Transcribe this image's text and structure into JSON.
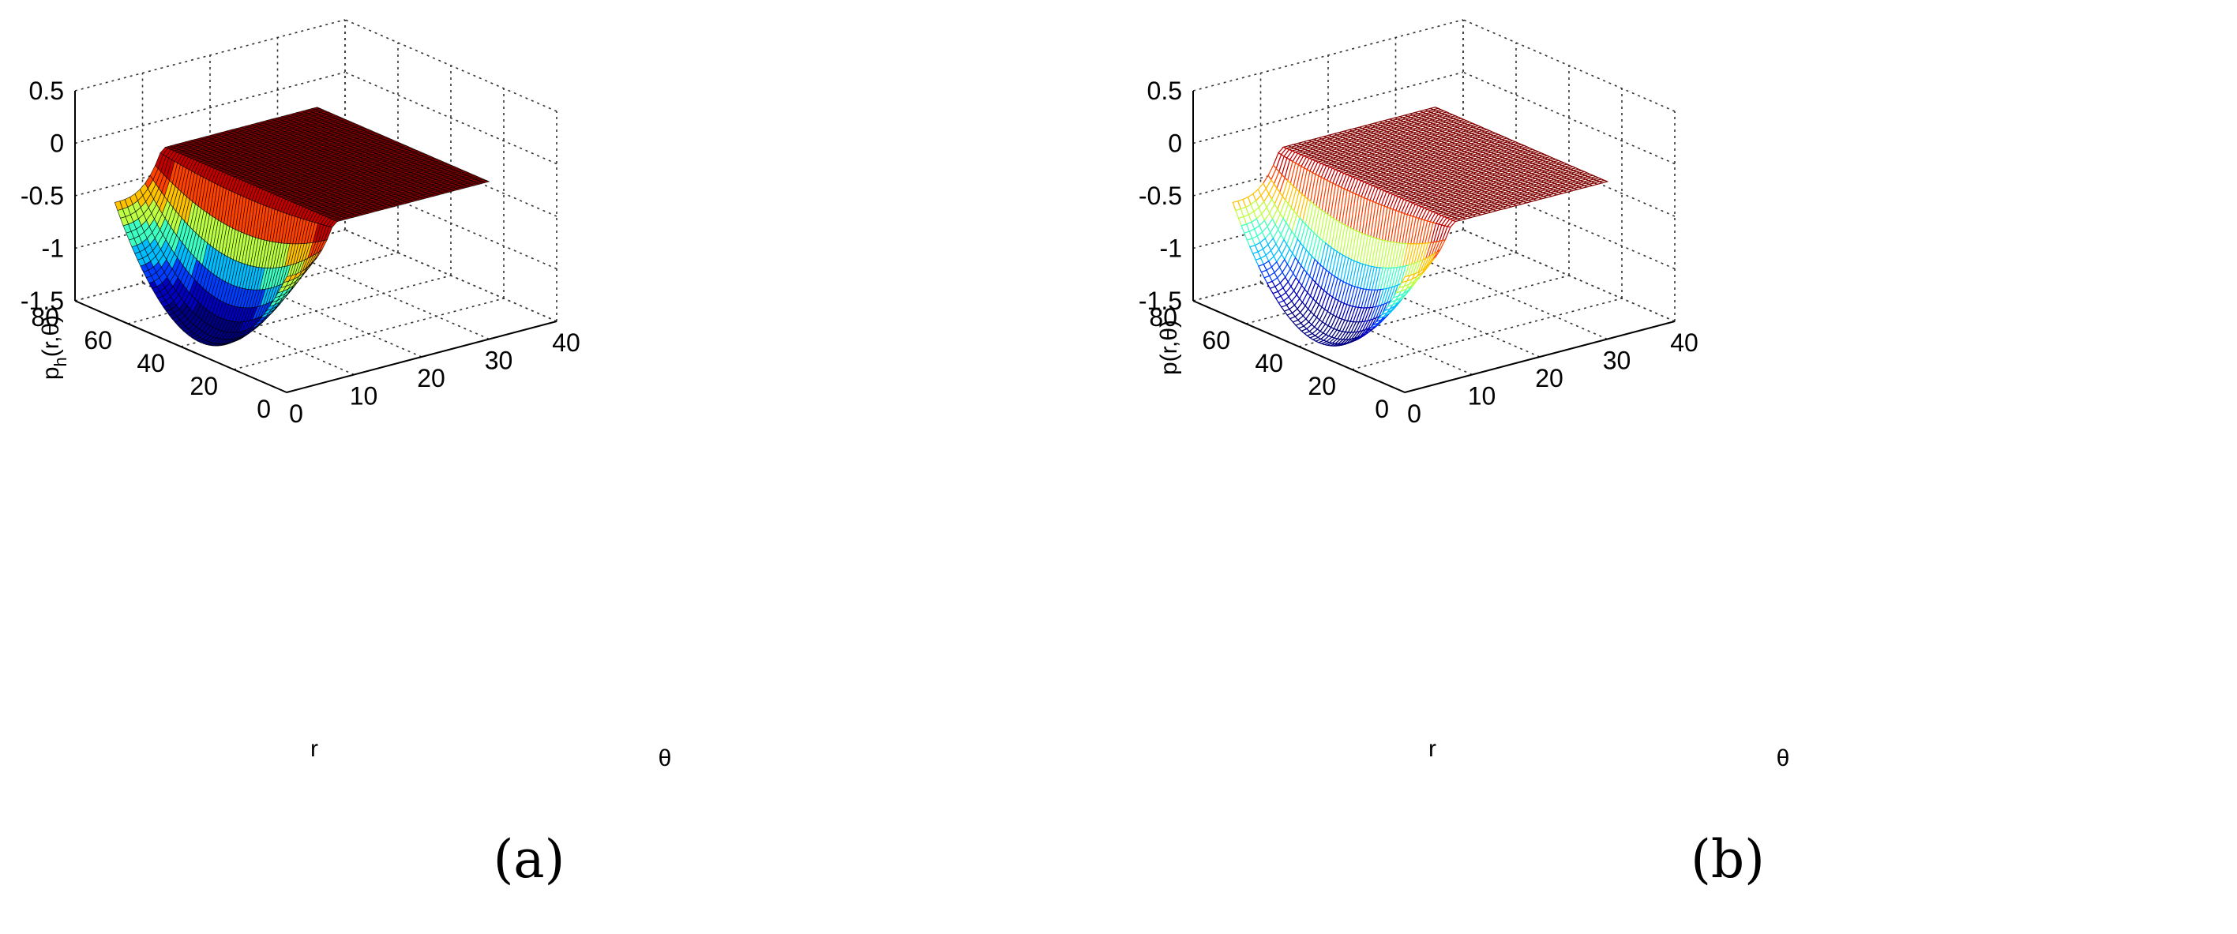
{
  "chart_data": [
    {
      "type": "surface",
      "panel_label": "(a)",
      "render": "filled",
      "xlabel": "θ",
      "ylabel": "r",
      "zlabel": "p_h(r,θ)",
      "zlabel_main": "p",
      "zlabel_sub": "h",
      "zlabel_rest": "(r,θ)",
      "xlim": [
        0,
        40
      ],
      "ylim": [
        0,
        80
      ],
      "zlim": [
        -1.5,
        0.5
      ],
      "xticks": [
        "0",
        "10",
        "20",
        "30",
        "40"
      ],
      "yticks": [
        "0",
        "20",
        "40",
        "60",
        "80"
      ],
      "zticks": [
        "-1.5",
        "-1",
        "-0.5",
        "0",
        "0.5"
      ],
      "grid": true,
      "colormap": "jet",
      "surface": {
        "theta_extent": [
          0,
          30
        ],
        "r_extent": [
          0,
          65
        ],
        "theta_peak": 7,
        "r_mid": 32.5,
        "edge_values": {
          "theta_0": -0.4,
          "theta_max": 0.0
        },
        "min_value": -1.18
      }
    },
    {
      "type": "surface",
      "panel_label": "(b)",
      "render": "mesh",
      "xlabel": "θ",
      "ylabel": "r",
      "zlabel": "p(r,θ)",
      "zlabel_main": "p(r,θ)",
      "zlabel_sub": "",
      "zlabel_rest": "",
      "xlim": [
        0,
        40
      ],
      "ylim": [
        0,
        80
      ],
      "zlim": [
        -1.5,
        0.5
      ],
      "xticks": [
        "0",
        "10",
        "20",
        "30",
        "40"
      ],
      "yticks": [
        "0",
        "20",
        "40",
        "60",
        "80"
      ],
      "zticks": [
        "-1.5",
        "-1",
        "-0.5",
        "0",
        "0.5"
      ],
      "grid": true,
      "colormap": "jet",
      "surface": {
        "theta_extent": [
          0,
          30
        ],
        "r_extent": [
          0,
          65
        ],
        "theta_peak": 7,
        "r_mid": 32.5,
        "edge_values": {
          "theta_0": -0.4,
          "theta_max": 0.0
        },
        "min_value": -1.18
      }
    }
  ]
}
